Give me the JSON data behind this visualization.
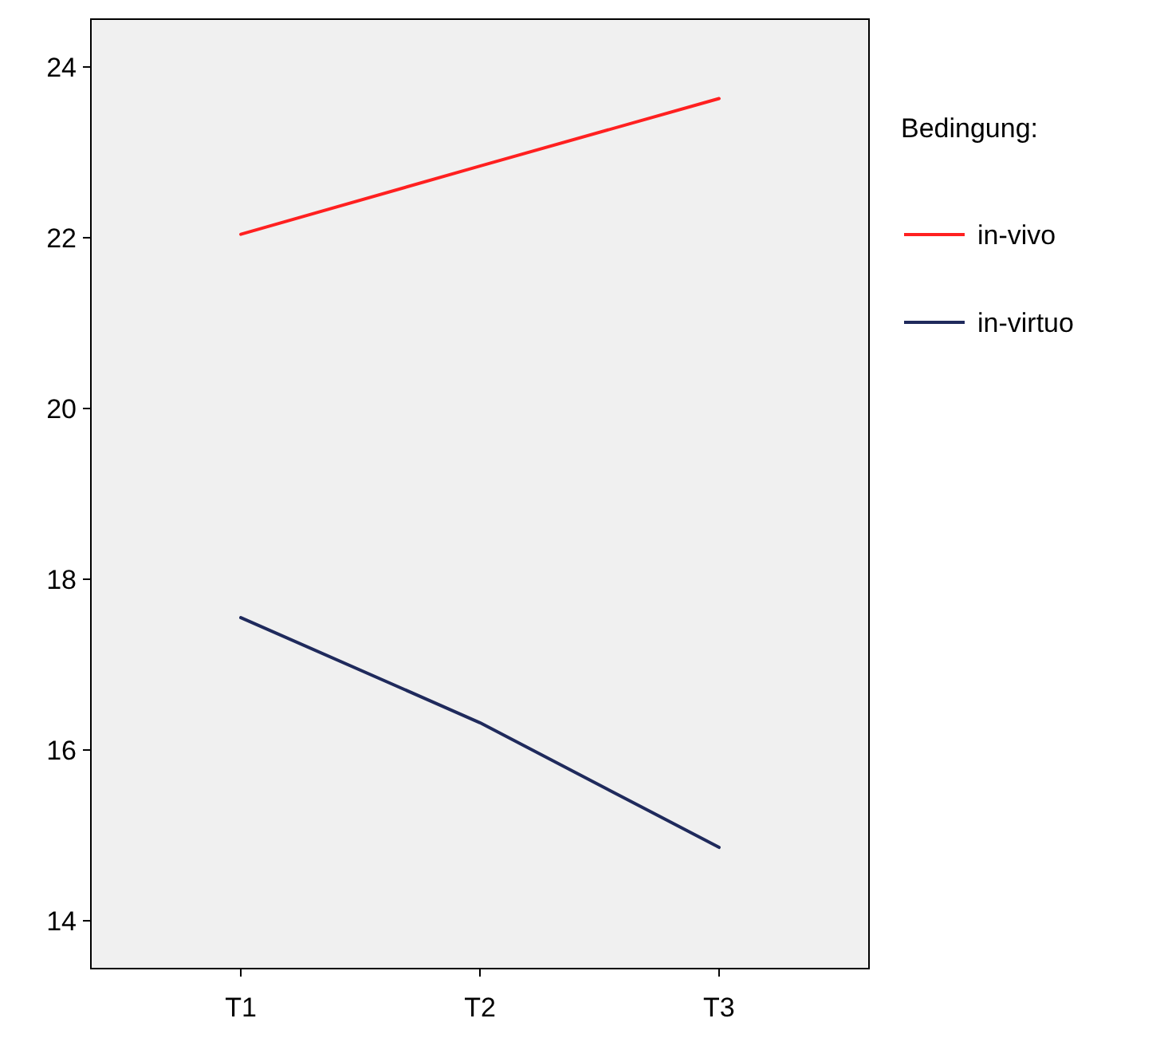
{
  "chart_data": {
    "type": "line",
    "categories": [
      "T1",
      "T2",
      "T3"
    ],
    "series": [
      {
        "name": "in-vivo",
        "color": "#ff2020",
        "values": [
          22.04,
          22.84,
          23.63
        ]
      },
      {
        "name": "in-virtuo",
        "color": "#1f2a5c",
        "values": [
          17.55,
          16.32,
          14.86
        ]
      }
    ],
    "ylim": [
      13.44,
      24.56
    ],
    "yticks": [
      14,
      16,
      18,
      20,
      22,
      24
    ],
    "legend_title": "Bedingung:",
    "legend": "right",
    "grid": false
  }
}
